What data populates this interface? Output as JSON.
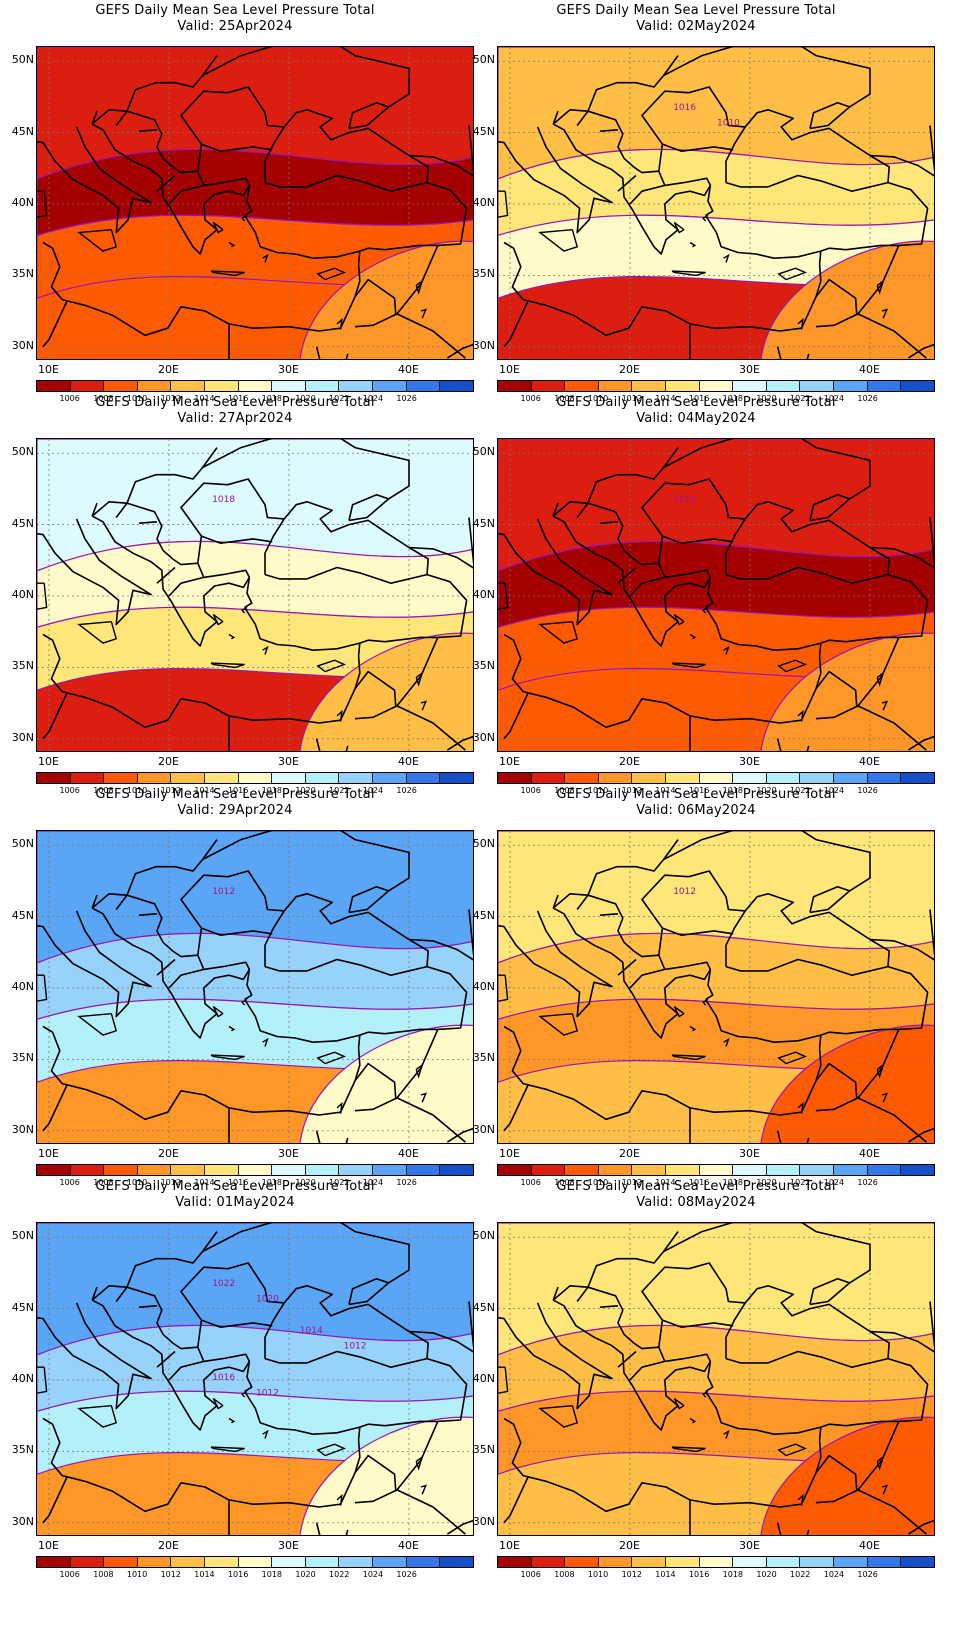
{
  "panels": [
    {
      "title": "GEFS Daily Mean Sea Level Pressure Total",
      "valid": "Valid: 25Apr2024",
      "scheme": "low",
      "contour_labels": []
    },
    {
      "title": "GEFS Daily Mean Sea Level Pressure Total",
      "valid": "Valid: 02May2024",
      "scheme": "mixlow",
      "contour_labels": [
        "1016",
        "1010"
      ]
    },
    {
      "title": "GEFS Daily Mean Sea Level Pressure Total",
      "valid": "Valid: 27Apr2024",
      "scheme": "mixhigh",
      "contour_labels": [
        "1018"
      ]
    },
    {
      "title": "GEFS Daily Mean Sea Level Pressure Total",
      "valid": "Valid: 04May2024",
      "scheme": "low",
      "contour_labels": [
        "1010"
      ]
    },
    {
      "title": "GEFS Daily Mean Sea Level Pressure Total",
      "valid": "Valid: 29Apr2024",
      "scheme": "high",
      "contour_labels": [
        "1012"
      ]
    },
    {
      "title": "GEFS Daily Mean Sea Level Pressure Total",
      "valid": "Valid: 06May2024",
      "scheme": "mid",
      "contour_labels": [
        "1012"
      ]
    },
    {
      "title": "GEFS Daily Mean Sea Level Pressure Total",
      "valid": "Valid: 01May2024",
      "scheme": "high",
      "contour_labels": [
        "1022",
        "1020",
        "1014",
        "1012",
        "1016",
        "1012"
      ]
    },
    {
      "title": "GEFS Daily Mean Sea Level Pressure Total",
      "valid": "Valid: 08May2024",
      "scheme": "mid",
      "contour_labels": []
    }
  ],
  "lat_labels": [
    "50N",
    "45N",
    "40N",
    "35N",
    "30N"
  ],
  "lon_labels": [
    "10E",
    "20E",
    "30E",
    "40E"
  ],
  "colorbar": {
    "labels": [
      "1006",
      "1008",
      "1010",
      "1012",
      "1014",
      "1016",
      "1018",
      "1020",
      "1022",
      "1024",
      "1026"
    ],
    "colors": [
      "#a50000",
      "#dc1e10",
      "#ff5a00",
      "#ff9628",
      "#ffbe46",
      "#ffe678",
      "#fffac8",
      "#dcfaff",
      "#b4f0fa",
      "#96d2fa",
      "#5aa5f5",
      "#3278e6",
      "#1450c8"
    ]
  },
  "contour_line_color": "#9b14b4",
  "contour_label_color": "#a0148c"
}
